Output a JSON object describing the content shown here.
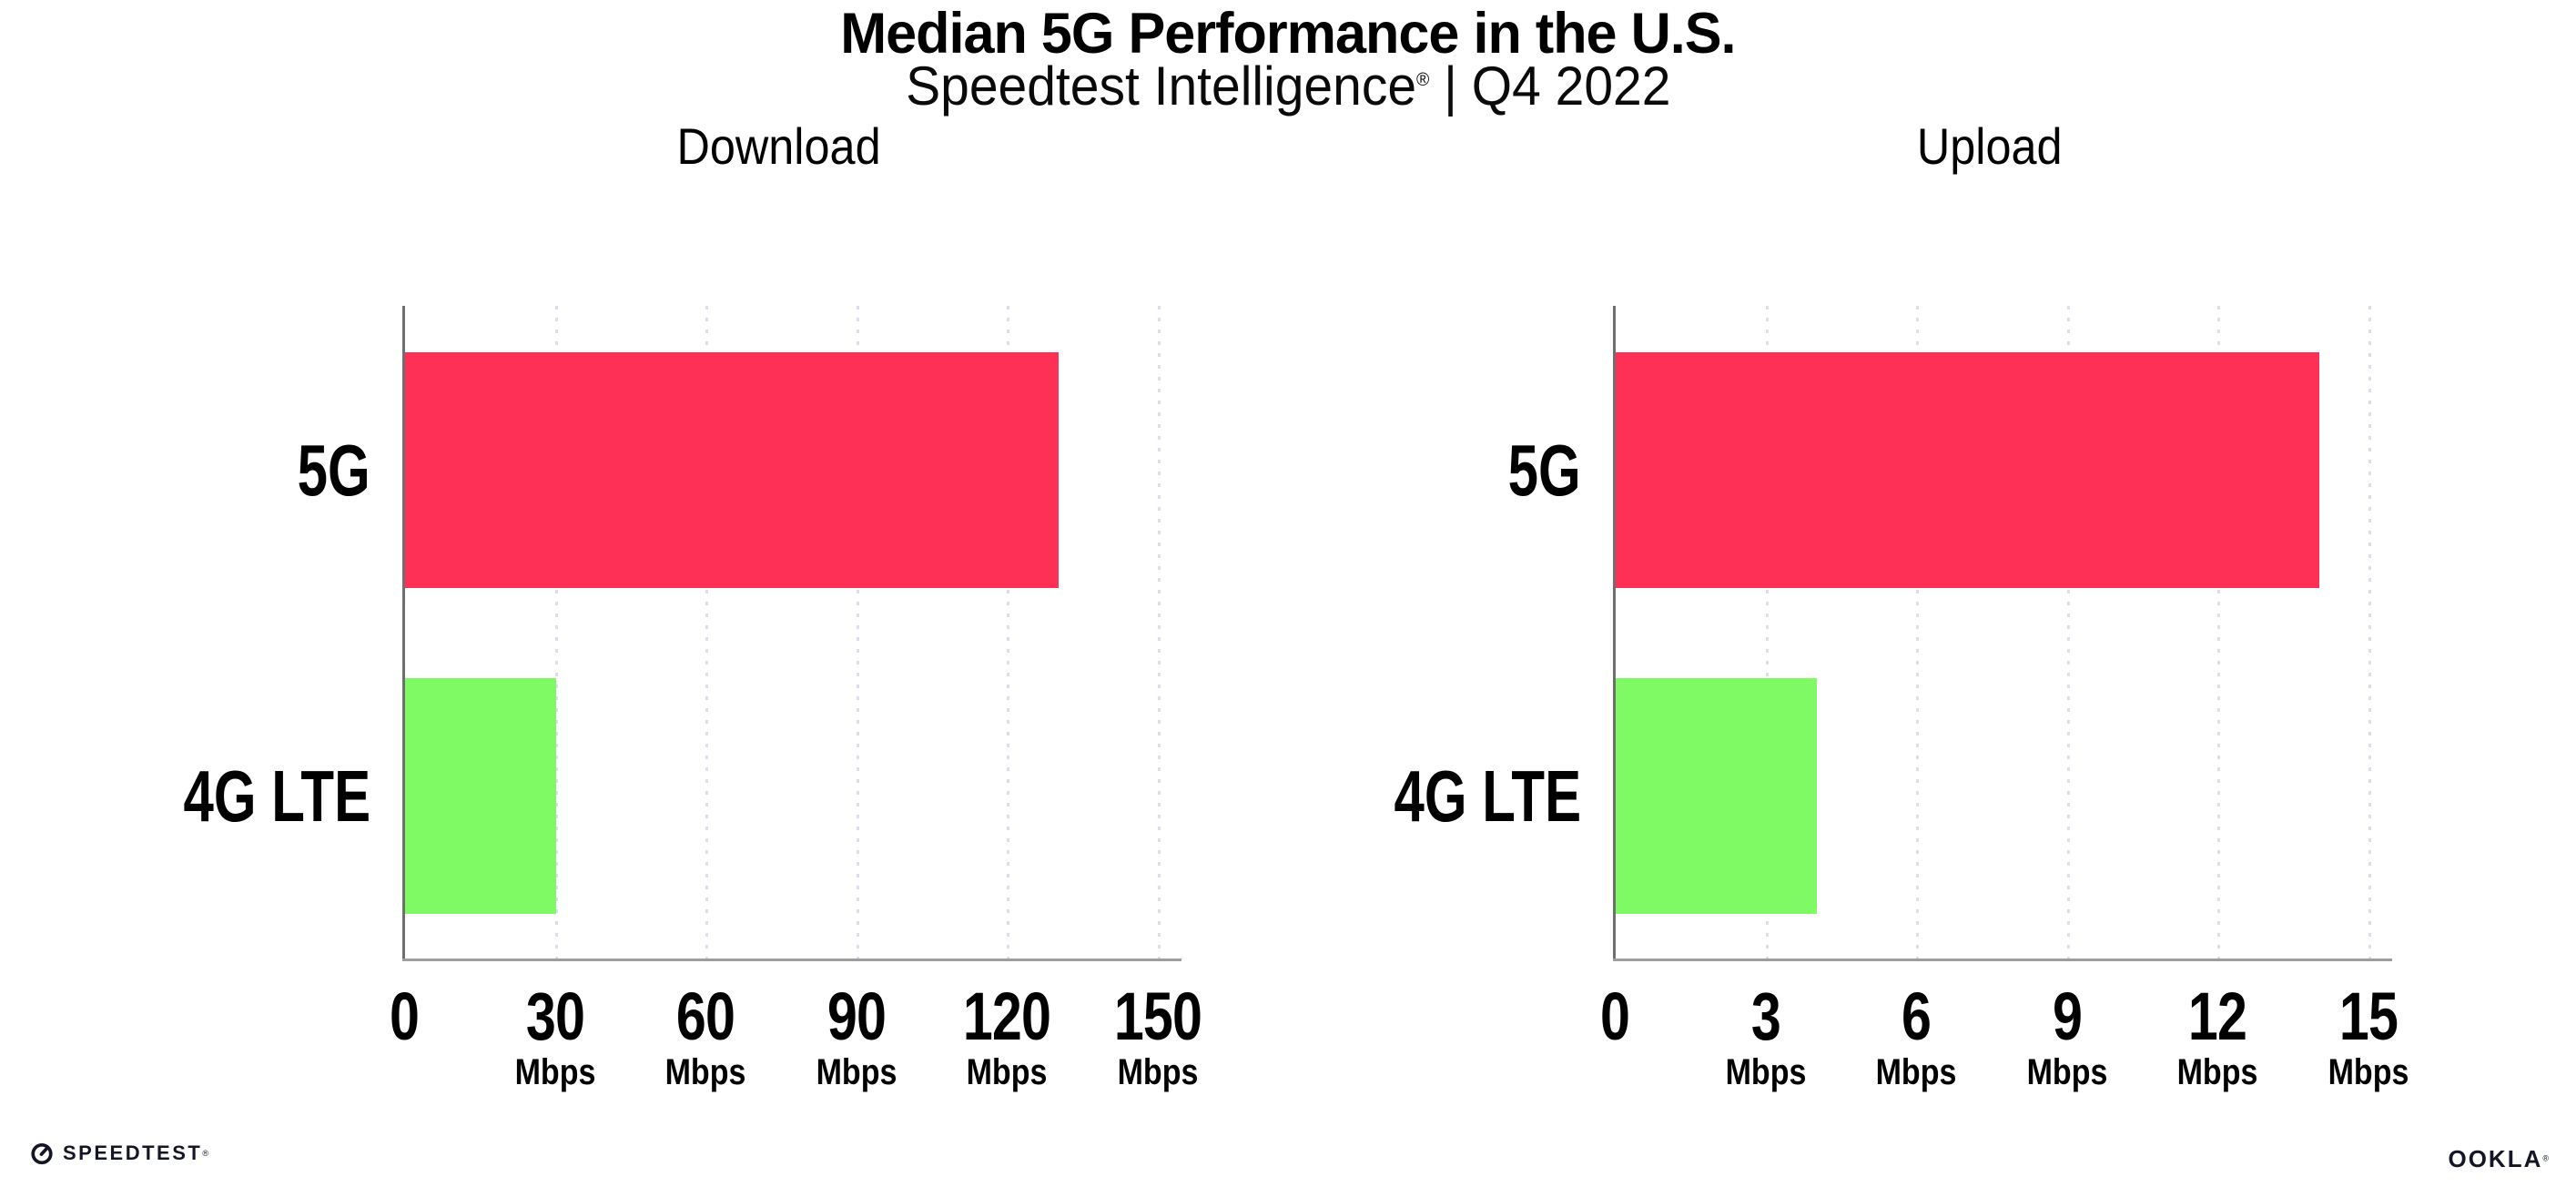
{
  "header": {
    "title": "Median 5G Performance in the U.S.",
    "subtitle_brand": "Speedtest Intelligence",
    "subtitle_reg": "®",
    "subtitle_rest": " | Q4 2022"
  },
  "colors": {
    "bar_5g": "#ff3056",
    "bar_4g_lte": "#7ffa65",
    "axis": "#9e9e9e",
    "y_axis": "#6f6f6f",
    "gridline": "#dddded"
  },
  "chart_data": [
    {
      "type": "bar",
      "orientation": "horizontal",
      "title": "Download",
      "categories": [
        "5G",
        "4G LTE"
      ],
      "values": [
        130,
        30
      ],
      "unit": "Mbps",
      "xlim": [
        0,
        150
      ],
      "grid": "dotted-vertical",
      "legend": "none",
      "ticks": [
        {
          "label": "0",
          "unit": ""
        },
        {
          "label": "30",
          "unit": "Mbps"
        },
        {
          "label": "60",
          "unit": "Mbps"
        },
        {
          "label": "90",
          "unit": "Mbps"
        },
        {
          "label": "120",
          "unit": "Mbps"
        },
        {
          "label": "150",
          "unit": "Mbps"
        }
      ]
    },
    {
      "type": "bar",
      "orientation": "horizontal",
      "title": "Upload",
      "categories": [
        "5G",
        "4G LTE"
      ],
      "values": [
        14,
        4
      ],
      "unit": "Mbps",
      "xlim": [
        0,
        15
      ],
      "grid": "dotted-vertical",
      "legend": "none",
      "ticks": [
        {
          "label": "0",
          "unit": ""
        },
        {
          "label": "3",
          "unit": "Mbps"
        },
        {
          "label": "6",
          "unit": "Mbps"
        },
        {
          "label": "9",
          "unit": "Mbps"
        },
        {
          "label": "12",
          "unit": "Mbps"
        },
        {
          "label": "15",
          "unit": "Mbps"
        }
      ]
    }
  ],
  "footer": {
    "speedtest_label": "SPEEDTEST",
    "speedtest_reg": "®",
    "ookla_label": "OOKLA",
    "ookla_reg": "®"
  }
}
